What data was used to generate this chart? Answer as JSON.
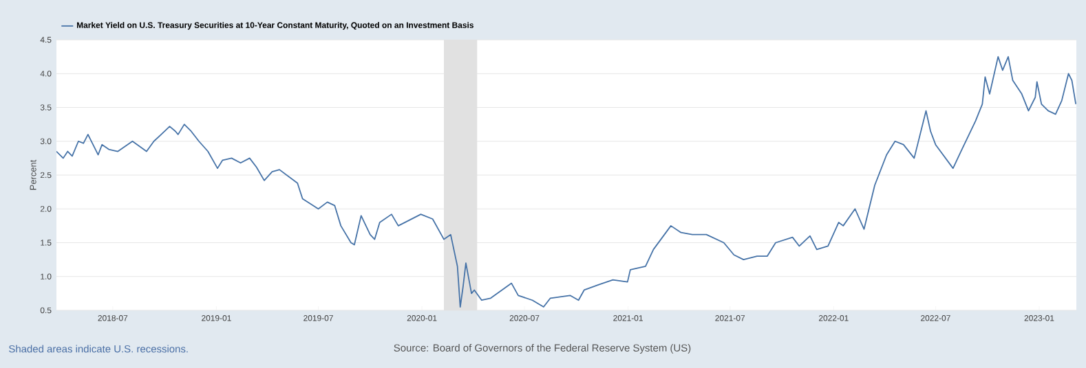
{
  "chart_data": {
    "type": "line",
    "series": [
      {
        "name": "Market Yield on U.S. Treasury Securities at 10-Year Constant Maturity, Quoted on an Investment Basis",
        "color": "#4572a7",
        "values": [
          2.85,
          2.75,
          2.85,
          2.78,
          3.0,
          2.97,
          3.1,
          2.95,
          2.8,
          2.95,
          2.88,
          2.85,
          3.0,
          2.85,
          3.0,
          3.1,
          3.22,
          3.15,
          3.1,
          3.25,
          3.15,
          3.0,
          2.85,
          2.6,
          2.72,
          2.75,
          2.68,
          2.75,
          2.62,
          2.42,
          2.55,
          2.58,
          2.38,
          2.15,
          2.0,
          2.1,
          2.05,
          1.75,
          1.5,
          1.47,
          1.9,
          1.62,
          1.55,
          1.8,
          1.92,
          1.75,
          1.92,
          1.85,
          1.55,
          1.62,
          1.15,
          0.55,
          0.85,
          1.2,
          0.75,
          0.8,
          0.65,
          0.68,
          0.9,
          0.72,
          0.65,
          0.55,
          0.68,
          0.72,
          0.65,
          0.8,
          0.88,
          0.95,
          0.92,
          1.1,
          1.15,
          1.4,
          1.75,
          1.65,
          1.62,
          1.62,
          1.5,
          1.32,
          1.25,
          1.3,
          1.3,
          1.5,
          1.58,
          1.45,
          1.6,
          1.4,
          1.45,
          1.8,
          1.75,
          2.0,
          1.7,
          2.35,
          2.8,
          3.0,
          2.95,
          2.75,
          3.45,
          3.15,
          2.95,
          2.6,
          2.85,
          3.3,
          3.55,
          3.95,
          3.7,
          4.25,
          4.05,
          4.25,
          3.9,
          3.7,
          3.45,
          3.65,
          3.88,
          3.55,
          3.45,
          3.4,
          3.6,
          4.0,
          3.9,
          3.55
        ]
      }
    ],
    "x": [
      "2018-03-23",
      "2018-04-04",
      "2018-04-12",
      "2018-04-20",
      "2018-05-01",
      "2018-05-10",
      "2018-05-18",
      "2018-05-27",
      "2018-06-05",
      "2018-06-12",
      "2018-06-24",
      "2018-07-10",
      "2018-08-05",
      "2018-08-30",
      "2018-09-12",
      "2018-09-25",
      "2018-10-10",
      "2018-10-20",
      "2018-10-25",
      "2018-11-05",
      "2018-11-17",
      "2018-12-01",
      "2018-12-17",
      "2019-01-03",
      "2019-01-12",
      "2019-01-28",
      "2019-02-13",
      "2019-03-01",
      "2019-03-13",
      "2019-03-27",
      "2019-04-10",
      "2019-04-23",
      "2019-05-25",
      "2019-06-03",
      "2019-07-01",
      "2019-07-17",
      "2019-07-30",
      "2019-08-10",
      "2019-08-28",
      "2019-09-03",
      "2019-09-15",
      "2019-10-01",
      "2019-10-09",
      "2019-10-18",
      "2019-11-08",
      "2019-11-20",
      "2019-12-30",
      "2020-01-20",
      "2020-02-09",
      "2020-02-21",
      "2020-03-04",
      "2020-03-09",
      "2020-03-14",
      "2020-03-19",
      "2020-03-29",
      "2020-04-03",
      "2020-04-16",
      "2020-05-02",
      "2020-06-08",
      "2020-06-20",
      "2020-07-15",
      "2020-08-04",
      "2020-08-16",
      "2020-09-20",
      "2020-10-05",
      "2020-10-15",
      "2020-11-10",
      "2020-12-05",
      "2020-12-31",
      "2021-01-05",
      "2021-02-01",
      "2021-02-15",
      "2021-03-18",
      "2021-04-05",
      "2021-04-25",
      "2021-05-20",
      "2021-06-20",
      "2021-07-08",
      "2021-07-25",
      "2021-08-18",
      "2021-09-05",
      "2021-09-20",
      "2021-10-20",
      "2021-11-01",
      "2021-11-20",
      "2021-12-02",
      "2021-12-22",
      "2022-01-10",
      "2022-01-18",
      "2022-02-08",
      "2022-02-24",
      "2022-03-15",
      "2022-04-05",
      "2022-04-20",
      "2022-05-05",
      "2022-05-24",
      "2022-06-14",
      "2022-06-22",
      "2022-07-01",
      "2022-08-01",
      "2022-08-15",
      "2022-09-10",
      "2022-09-22",
      "2022-09-27",
      "2022-10-05",
      "2022-10-20",
      "2022-10-28",
      "2022-11-07",
      "2022-11-15",
      "2022-12-01",
      "2022-12-13",
      "2022-12-25",
      "2022-12-28",
      "2023-01-05",
      "2023-01-17",
      "2023-01-30",
      "2023-02-10",
      "2023-02-22",
      "2023-02-28",
      "2023-03-07"
    ],
    "xlim": [
      "2018-03-23",
      "2023-03-08"
    ],
    "xticks": [
      {
        "value": "2018-07-01",
        "label": "2018-07"
      },
      {
        "value": "2019-01-01",
        "label": "2019-01"
      },
      {
        "value": "2019-07-01",
        "label": "2019-07"
      },
      {
        "value": "2020-01-01",
        "label": "2020-01"
      },
      {
        "value": "2020-07-01",
        "label": "2020-07"
      },
      {
        "value": "2021-01-01",
        "label": "2021-01"
      },
      {
        "value": "2021-07-01",
        "label": "2021-07"
      },
      {
        "value": "2022-01-01",
        "label": "2022-01"
      },
      {
        "value": "2022-07-01",
        "label": "2022-07"
      },
      {
        "value": "2023-01-01",
        "label": "2023-01"
      }
    ],
    "ylim": [
      0.5,
      4.5
    ],
    "yticks": [
      0.5,
      {
        "value": 1,
        "label": "1.0"
      },
      1.5,
      {
        "value": 2,
        "label": "2.0"
      },
      2.5,
      {
        "value": 3,
        "label": "3.0"
      },
      3.5,
      {
        "value": 4,
        "label": "4.0"
      },
      4.5
    ],
    "ylabel": "Percent",
    "bands": [
      {
        "axis": "x",
        "from": "2020-02-09",
        "to": "2020-04-08",
        "color": "#e1e1e1"
      }
    ],
    "annotations": [
      "Shaded areas indicate U.S. recessions.",
      "Source: Board of Governors of the Federal Reserve System (US)"
    ],
    "grid": "y",
    "legend": "top left",
    "marker": "none",
    "line_style": "solid"
  }
}
